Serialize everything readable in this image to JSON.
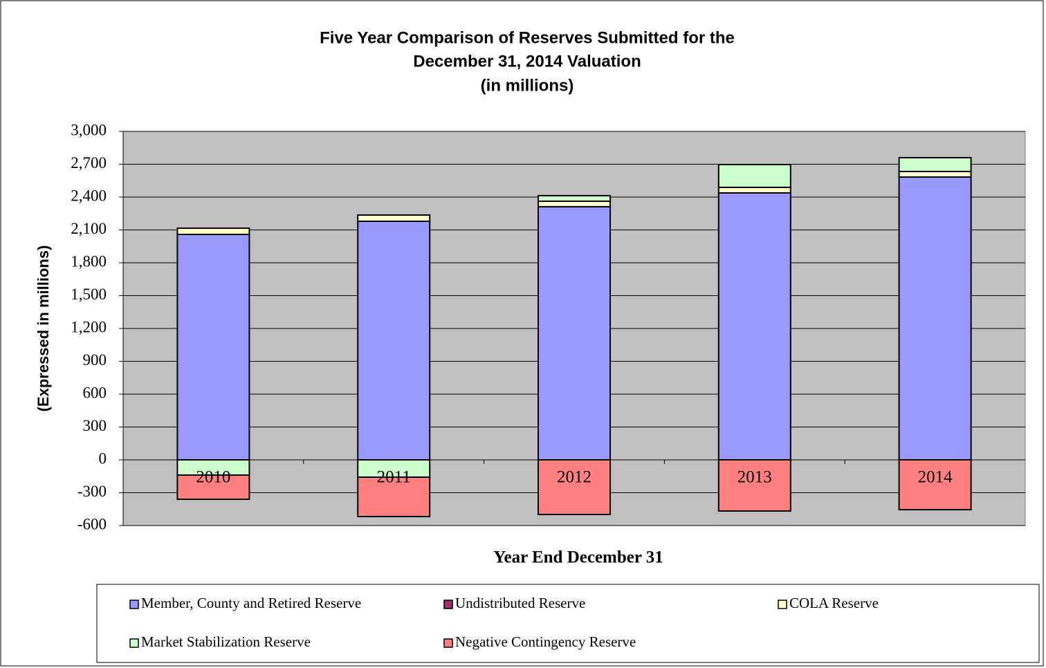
{
  "chart_data": {
    "type": "stacked-bar",
    "title": [
      "Five Year Comparison of Reserves Submitted for the",
      "December 31, 2014 Valuation",
      "(in millions)"
    ],
    "x_label": "Year End December 31",
    "y_label": "(Expressed in millions)",
    "categories": [
      "2010",
      "2011",
      "2012",
      "2013",
      "2014"
    ],
    "series": [
      {
        "name": "Member, County and Retired Reserve",
        "color": "#9999ff",
        "values": [
          2059,
          2179,
          2312,
          2438,
          2583
        ]
      },
      {
        "name": "Undistributed Reserve",
        "color": "#993366",
        "values": [
          0,
          0,
          0,
          0,
          0
        ]
      },
      {
        "name": "COLA Reserve",
        "color": "#ffffcc",
        "values": [
          57,
          57,
          50,
          51,
          51
        ]
      },
      {
        "name": "Market Stabilization Reserve",
        "color": "#ccffcc",
        "values": [
          -139,
          -158,
          51,
          208,
          126
        ]
      },
      {
        "name": "Negative Contingency Reserve",
        "color": "#ff8080",
        "values": [
          -221,
          -360,
          -499,
          -467,
          -455
        ]
      }
    ],
    "ylim": [
      -600,
      3000
    ],
    "yticks": [
      -600,
      -300,
      0,
      300,
      600,
      900,
      {
        "value": 1200,
        "label": "1,200"
      },
      {
        "value": 1500,
        "label": "1,500"
      },
      {
        "value": 1800,
        "label": "1,800"
      },
      {
        "value": 2100,
        "label": "2,100"
      },
      {
        "value": 2400,
        "label": "2,400"
      },
      {
        "value": 2700,
        "label": "2,700"
      },
      {
        "value": 3000,
        "label": "3,000"
      }
    ],
    "grid": true,
    "plot_background": "#c0c0c0",
    "legend": "bottom"
  }
}
